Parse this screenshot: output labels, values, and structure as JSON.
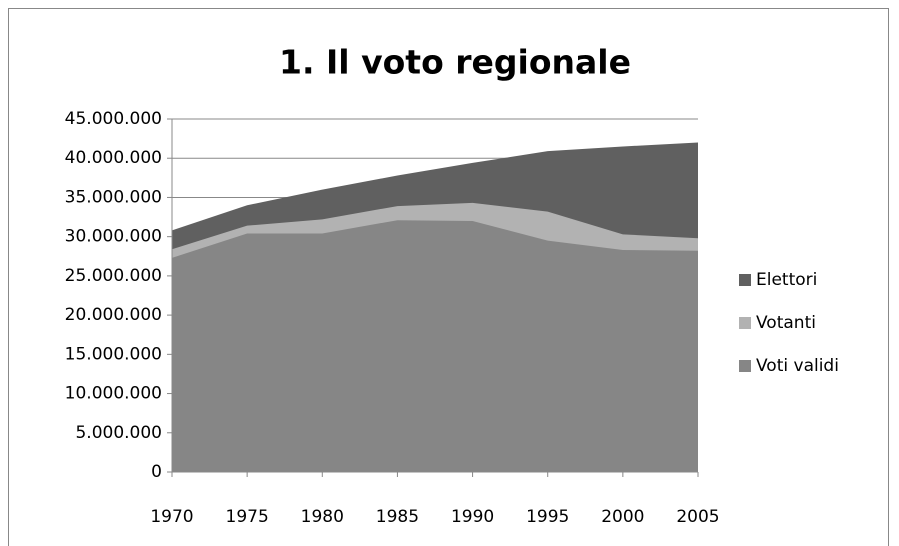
{
  "chart_data": {
    "type": "area",
    "title": "1. Il voto regionale",
    "x": [
      1970,
      1975,
      1980,
      1985,
      1990,
      1995,
      2000,
      2005
    ],
    "series": [
      {
        "name": "Elettori",
        "color": "#606060",
        "values": [
          30800000,
          34000000,
          36000000,
          37800000,
          39400000,
          40900000,
          41500000,
          42000000
        ]
      },
      {
        "name": "Votanti",
        "color": "#b2b2b2",
        "values": [
          28400000,
          31400000,
          32200000,
          33900000,
          34300000,
          33200000,
          30300000,
          29800000
        ]
      },
      {
        "name": "Voti validi",
        "color": "#868686",
        "values": [
          27300000,
          30400000,
          30400000,
          32100000,
          32000000,
          29500000,
          28300000,
          28200000
        ]
      }
    ],
    "xlim": [
      1970,
      2005
    ],
    "xticks": [
      1970,
      1975,
      1980,
      1985,
      1990,
      1995,
      2000,
      2005
    ],
    "ylim": [
      0,
      45000000
    ],
    "yticks": [
      0,
      {
        "value": 5000000,
        "label": "5.000.000"
      },
      {
        "value": 10000000,
        "label": "10.000.000"
      },
      {
        "value": 15000000,
        "label": "15.000.000"
      },
      {
        "value": 20000000,
        "label": "20.000.000"
      },
      {
        "value": 25000000,
        "label": "25.000.000"
      },
      {
        "value": 30000000,
        "label": "30.000.000"
      },
      {
        "value": 35000000,
        "label": "35.000.000"
      },
      {
        "value": 40000000,
        "label": "40.000.000"
      },
      {
        "value": 45000000,
        "label": "45.000.000"
      }
    ],
    "grid": true,
    "legend": "right"
  }
}
